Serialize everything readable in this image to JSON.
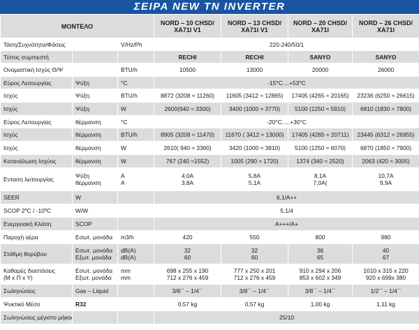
{
  "banner": "ΣΕΙΡΑ NEW TN INVERTER",
  "header": {
    "label": "ΜΟΝΤΕΛΟ",
    "models": [
      [
        "NORD – 10 CHSD/",
        "XA71I V1"
      ],
      [
        "NORD – 13 CHSD/",
        "XA71I V1"
      ],
      [
        "NORD – 20 CHSD/",
        "XA71I"
      ],
      [
        "NORD – 26 CHSD/",
        "XA71I"
      ]
    ]
  },
  "rows": [
    {
      "label": "Τάση/Συχνότητα/Φάσεις",
      "mode": "",
      "unit": "V/Hz/Ph",
      "span": "220-240/50/1"
    },
    {
      "label": "Τύπος συμπιεστή",
      "mode": "",
      "unit": "",
      "bold": true,
      "values": [
        "RECHI",
        "RECHI",
        "SANYO",
        "SANYO"
      ]
    },
    {
      "label": "Ονομαστική Ισχύς Θ/Ψ",
      "mode": "",
      "unit": "BTU/h",
      "values": [
        "10500",
        "13000",
        "20000",
        "26000"
      ]
    },
    {
      "label": "Εύρος Λειτουργίας",
      "mode": "Ψύξη",
      "unit": "°C",
      "span": "-15°C....+53°C"
    },
    {
      "label": "Ισχύς",
      "mode": "Ψύξη",
      "unit": "BTU/h",
      "values": [
        "8872 (3208 ≈ 11260)",
        "11605 (3412 ≈ 12865)",
        "17405 (4265 ≈ 20165)",
        "23236 (6250 ≈ 26615)"
      ]
    },
    {
      "label": "Ισχύς",
      "mode": "Ψύξη",
      "unit": "W",
      "values": [
        "2600(940 ≈ 3300)",
        "3400 (1000 ≈ 3770)",
        "5100 (1250 ≈ 5910)",
        "6810 (1830 ≈ 7800)"
      ]
    },
    {
      "label": "Εύρος Λειτουργίας",
      "mode": "θέρμανση",
      "unit": "°C",
      "span": "-20°C.....+30°C"
    },
    {
      "label": "Ισχύς",
      "mode": "θέρμανση",
      "unit": "BTU/h",
      "values": [
        "8905 (3208 ≈ 11470)",
        "11670 ( 3412 ≈ 13000)",
        "17405 (4265 ≈ 20711)",
        "23445 (6312 ≈ 26955)"
      ]
    },
    {
      "label": "Ισχύς",
      "mode": "θέρμανση",
      "unit": "W",
      "values": [
        "2610( 940 ≈ 3360)",
        "3420 (1000 ≈ 3810)",
        "5100 (1250 ≈ 6070)",
        "6870 (1850 ≈ 7900)"
      ]
    },
    {
      "label": "Κατανάλωση Ισχύος",
      "mode": "θέρμανση",
      "unit": "W",
      "values": [
        "767 (240 ≈1552)",
        "1005 (290 ≈ 1720)",
        "1374 (340 ≈ 2520)",
        "2063 (420 ≈ 3005)"
      ]
    },
    {
      "label": "Ενταση λειτουργίας",
      "mode": [
        "Ψύξη",
        "θέρμανση"
      ],
      "unit": [
        "A",
        "A"
      ],
      "values": [
        [
          "4,0A",
          "3,8A"
        ],
        [
          "5,8A",
          "5,1A"
        ],
        [
          "8,1A",
          "7,0A("
        ],
        [
          "10,7A",
          "9,9A"
        ]
      ]
    },
    {
      "label": "SEER",
      "mode": "W",
      "unit": "",
      "span": "6,1/A++"
    },
    {
      "label": "SCOP 2ºC / -10ºC",
      "mode": "W/W",
      "unit": "",
      "span": "5,1/4"
    },
    {
      "label": "Ενεργειακή Κλάση",
      "mode": "SCOP",
      "unit": "",
      "span": "A+++/A+"
    },
    {
      "label": "Παροχή αέρα",
      "mode": "Εσωτ. μονάδα",
      "unit": "m3/h",
      "values": [
        "420",
        "550",
        "800",
        "980"
      ]
    },
    {
      "label": "Στάθμη θορύβου",
      "mode": [
        "Εσωτ. μονάδα",
        "Εξωτ. μονάδα"
      ],
      "unit": [
        "dB(A)",
        "dB(A)"
      ],
      "values": [
        [
          "32",
          "60"
        ],
        [
          "32",
          "60"
        ],
        [
          "36",
          "65"
        ],
        [
          "40",
          "67"
        ]
      ]
    },
    {
      "label": [
        "Καθαρές διαστάσεις",
        "(M x Π x Y)"
      ],
      "mode": [
        "Εσωτ. μονάδα",
        "Εξωτ. μονάδα"
      ],
      "unit": [
        "mm",
        "mm"
      ],
      "values": [
        [
          "698 x 255 x 190",
          "712 x 276 x 459"
        ],
        [
          "777 x 250 x 201",
          "712 x 276 x 459"
        ],
        [
          "910 x 294 x 206",
          "853 x 602 x 349"
        ],
        [
          "1010 x 315 x 220",
          "920 x 699x 380"
        ]
      ]
    },
    {
      "label": "Σωληνώσεις",
      "mode": "Gas – Liquid",
      "unit": "",
      "values": [
        "3/8΄΄ – 1/4΄΄",
        "3/8΄΄ – 1/4΄΄",
        "3/8΄΄ – 1/4΄΄",
        "1/2΄΄ – 1/4΄΄"
      ]
    },
    {
      "label": "Ψυκτικό Μέσο",
      "mode": "R32",
      "unit": "",
      "modeBold": true,
      "values": [
        "0,57 kg",
        "0,57 kg",
        "1,00 kg",
        "1,11 kg"
      ]
    },
    {
      "label": "Σωληνώσεις μέγιστο μήκος/ύψος",
      "mode": "",
      "unit": "",
      "span": "25/10"
    }
  ],
  "colors": {
    "banner": "#1a55a3",
    "shade": "#dadcde"
  }
}
